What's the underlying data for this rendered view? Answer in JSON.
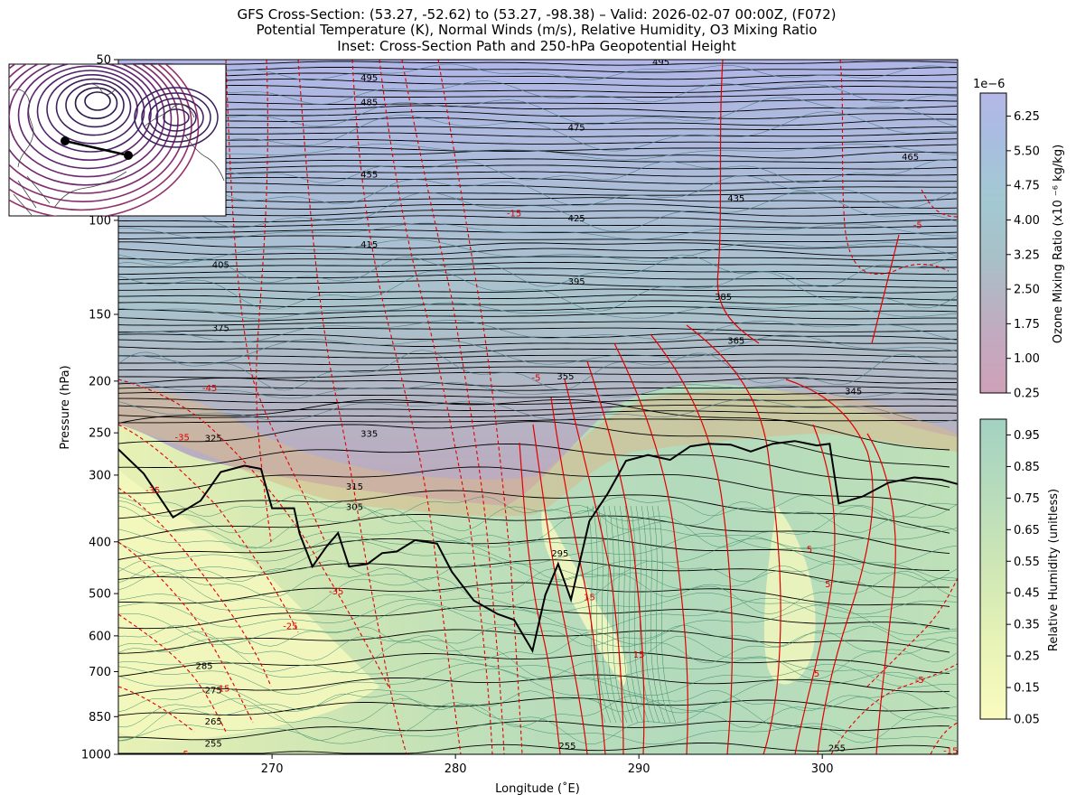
{
  "title_lines": [
    "GFS Cross-Section: (53.27, -52.62) to (53.27, -98.38) – Valid: 2026-02-07 00:00Z, (F072)",
    "Potential Temperature (K), Normal Winds (m/s), Relative Humidity, O3 Mixing Ratio",
    "Inset: Cross-Section Path and 250-hPa Geopotential Height"
  ],
  "colorbar_o3": {
    "label": "Ozone Mixing Ratio (x10 ⁻⁶ kg/kg)",
    "offset_text": "1e−6",
    "ticks": [
      "0.25",
      "1.00",
      "1.75",
      "2.50",
      "3.25",
      "4.00",
      "4.75",
      "5.50",
      "6.25"
    ],
    "range": [
      0.25,
      6.75
    ],
    "colors": [
      "#cfa1b8",
      "#c2aac0",
      "#a8c0c8",
      "#a3c9d3",
      "#a8bde0",
      "#b5b8e6"
    ]
  },
  "colorbar_rh": {
    "label": "Relative Humidity (unitless)",
    "ticks": [
      "0.05",
      "0.15",
      "0.25",
      "0.35",
      "0.45",
      "0.55",
      "0.65",
      "0.75",
      "0.85",
      "0.95"
    ],
    "range": [
      0.05,
      1.0
    ],
    "colors": [
      "#fafbbf",
      "#e8f3b7",
      "#cfe7b5",
      "#b7dcbc",
      "#a3d2c2"
    ]
  },
  "chart_data": {
    "type": "contour",
    "xlabel": "Longitude (˚E)",
    "ylabel": "Pressure (hPa)",
    "xlim": [
      261.62,
      307.38
    ],
    "ylim": [
      1000,
      50
    ],
    "yscale": "log",
    "x_ticks": [
      270,
      280,
      290,
      300
    ],
    "y_ticks": [
      1000,
      850,
      700,
      600,
      500,
      400,
      300,
      250,
      200,
      150,
      100,
      50
    ],
    "theta_contour_labels": [
      {
        "text": "495",
        "lon": 275.3,
        "p": 54
      },
      {
        "text": "485",
        "lon": 275.3,
        "p": 60
      },
      {
        "text": "495",
        "lon": 291.2,
        "p": 50.5
      },
      {
        "text": "475",
        "lon": 286.6,
        "p": 67
      },
      {
        "text": "465",
        "lon": 304.8,
        "p": 76
      },
      {
        "text": "455",
        "lon": 275.3,
        "p": 82
      },
      {
        "text": "435",
        "lon": 295.3,
        "p": 91
      },
      {
        "text": "425",
        "lon": 286.6,
        "p": 99
      },
      {
        "text": "415",
        "lon": 275.3,
        "p": 111
      },
      {
        "text": "405",
        "lon": 267.2,
        "p": 121
      },
      {
        "text": "395",
        "lon": 286.6,
        "p": 130
      },
      {
        "text": "385",
        "lon": 294.6,
        "p": 139
      },
      {
        "text": "375",
        "lon": 267.2,
        "p": 159
      },
      {
        "text": "365",
        "lon": 295.3,
        "p": 168
      },
      {
        "text": "355",
        "lon": 286.0,
        "p": 196
      },
      {
        "text": "345",
        "lon": 301.7,
        "p": 209
      },
      {
        "text": "335",
        "lon": 275.3,
        "p": 251
      },
      {
        "text": "325",
        "lon": 266.8,
        "p": 256
      },
      {
        "text": "315",
        "lon": 274.5,
        "p": 315
      },
      {
        "text": "305",
        "lon": 274.5,
        "p": 344
      },
      {
        "text": "295",
        "lon": 285.7,
        "p": 420
      },
      {
        "text": "285",
        "lon": 266.3,
        "p": 683
      },
      {
        "text": "275",
        "lon": 266.8,
        "p": 758
      },
      {
        "text": "265",
        "lon": 266.8,
        "p": 868
      },
      {
        "text": "255",
        "lon": 266.8,
        "p": 955
      },
      {
        "text": "255",
        "lon": 286.1,
        "p": 963
      },
      {
        "text": "255",
        "lon": 300.8,
        "p": 974
      }
    ],
    "wind_contour_labels": [
      {
        "text": "-15",
        "lon": 283.2,
        "p": 97
      },
      {
        "text": "-5",
        "lon": 305.2,
        "p": 102
      },
      {
        "text": "-45",
        "lon": 266.6,
        "p": 206
      },
      {
        "text": "-5",
        "lon": 284.4,
        "p": 197
      },
      {
        "text": "-35",
        "lon": 265.1,
        "p": 255
      },
      {
        "text": "-35",
        "lon": 263.5,
        "p": 320
      },
      {
        "text": "-35",
        "lon": 273.5,
        "p": 495
      },
      {
        "text": "-25",
        "lon": 271.0,
        "p": 575
      },
      {
        "text": "-15",
        "lon": 267.3,
        "p": 752
      },
      {
        "text": "5",
        "lon": 265.3,
        "p": 998
      },
      {
        "text": "15",
        "lon": 287.3,
        "p": 508
      },
      {
        "text": "15",
        "lon": 290.0,
        "p": 650
      },
      {
        "text": "5",
        "lon": 299.3,
        "p": 413
      },
      {
        "text": "5",
        "lon": 300.3,
        "p": 480
      },
      {
        "text": "5",
        "lon": 299.7,
        "p": 705
      },
      {
        "text": "-5",
        "lon": 305.3,
        "p": 725
      },
      {
        "text": "-15",
        "lon": 307.0,
        "p": 985
      }
    ],
    "tropopause_2pvu": [
      [
        261.6,
        268
      ],
      [
        263.0,
        298
      ],
      [
        264.6,
        360
      ],
      [
        266.1,
        335
      ],
      [
        267.2,
        296
      ],
      [
        268.5,
        288
      ],
      [
        269.4,
        292
      ],
      [
        270.0,
        346
      ],
      [
        271.2,
        346
      ],
      [
        271.5,
        386
      ],
      [
        272.2,
        445
      ],
      [
        273.0,
        407
      ],
      [
        273.6,
        385
      ],
      [
        274.2,
        445
      ],
      [
        275.2,
        440
      ],
      [
        276.0,
        420
      ],
      [
        276.8,
        417
      ],
      [
        277.8,
        397
      ],
      [
        279.0,
        403
      ],
      [
        279.8,
        455
      ],
      [
        281.0,
        515
      ],
      [
        282.3,
        546
      ],
      [
        283.2,
        560
      ],
      [
        284.2,
        640
      ],
      [
        284.9,
        503
      ],
      [
        285.6,
        440
      ],
      [
        286.3,
        513
      ],
      [
        287.3,
        366
      ],
      [
        288.3,
        325
      ],
      [
        289.3,
        282
      ],
      [
        290.5,
        275
      ],
      [
        291.7,
        281
      ],
      [
        292.8,
        265
      ],
      [
        293.8,
        262
      ],
      [
        295.0,
        263
      ],
      [
        296.1,
        271
      ],
      [
        297.3,
        262
      ],
      [
        298.5,
        259
      ],
      [
        299.7,
        264
      ],
      [
        300.4,
        262
      ],
      [
        300.9,
        339
      ],
      [
        302.2,
        329
      ],
      [
        303.6,
        310
      ],
      [
        305.0,
        303
      ],
      [
        306.5,
        306
      ],
      [
        307.4,
        312
      ]
    ]
  },
  "inset": {
    "path_start": [
      53.27,
      -52.62
    ],
    "path_end": [
      53.27,
      -98.38
    ]
  }
}
